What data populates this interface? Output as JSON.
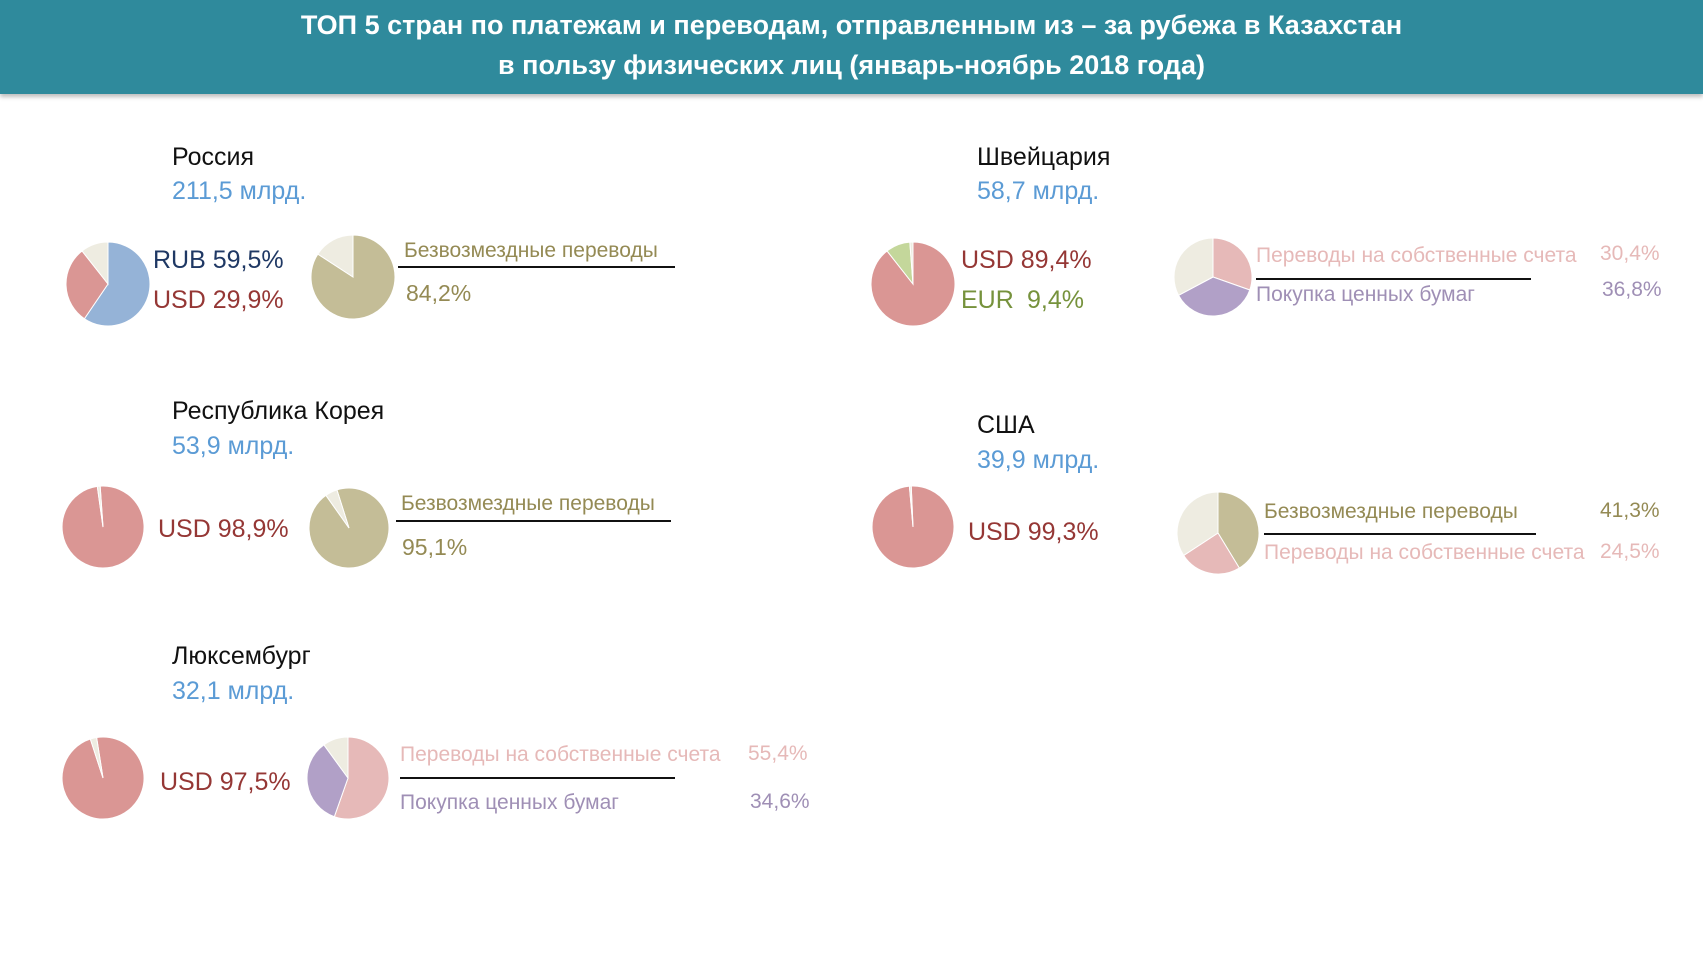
{
  "header": {
    "line1": "ТОП 5 стран по платежам и переводам, отправленным из – за рубежа в Казахстан",
    "line2": "в пользу физических лиц (январь-ноябрь 2018 года)"
  },
  "colors": {
    "header_bg": "#2f8a9c",
    "amount": "#5b9bd5",
    "rub": "#95b3d7",
    "usd": "#da9694",
    "eur": "#c4d79b",
    "other": "#eeece1",
    "gratuitous": "#c4bd97",
    "own_accounts": "#e6b9b8",
    "securities": "#b1a0c7"
  },
  "countries": [
    {
      "name": "Россия",
      "amount": "211,5 млрд.",
      "currency_labels": [
        "RUB 59,5%",
        "USD 29,9%"
      ],
      "purpose_labels": [
        "Безвозмездные переводы",
        "84,2%"
      ]
    },
    {
      "name": "Швейцария",
      "amount": "58,7 млрд.",
      "currency_labels": [
        "USD 89,4%",
        "EUR",
        "9,4%"
      ],
      "purpose_labels": [
        "Переводы на собственные счета",
        "30,4%",
        "Покупка ценных бумаг",
        "36,8%"
      ]
    },
    {
      "name": "Республика Корея",
      "amount": "53,9 млрд.",
      "currency_labels": [
        "USD 98,9%"
      ],
      "purpose_labels": [
        "Безвозмездные переводы",
        "95,1%"
      ]
    },
    {
      "name": "США",
      "amount": "39,9 млрд.",
      "currency_labels": [
        "USD 99,3%"
      ],
      "purpose_labels": [
        "Безвозмездные переводы",
        "41,3%",
        "Переводы на собственные счета",
        "24,5%"
      ]
    },
    {
      "name": "Люксембург",
      "amount": "32,1 млрд.",
      "currency_labels": [
        "USD 97,5%"
      ],
      "purpose_labels": [
        "Переводы на собственные счета",
        "55,4%",
        "Покупка ценных бумаг",
        "34,6%"
      ]
    }
  ],
  "chart_data": [
    {
      "type": "pie",
      "country": "Россия",
      "breakdown": "currency",
      "slices": [
        {
          "label": "RUB",
          "value": 59.5,
          "color": "#95b3d7"
        },
        {
          "label": "USD",
          "value": 29.9,
          "color": "#da9694"
        },
        {
          "label": "",
          "value": 10.6,
          "color": "#eeece1"
        }
      ]
    },
    {
      "type": "pie",
      "country": "Россия",
      "breakdown": "purpose",
      "slices": [
        {
          "label": "Безвозмездные переводы",
          "value": 84.2,
          "color": "#c4bd97"
        },
        {
          "label": "",
          "value": 15.8,
          "color": "#eeece1"
        }
      ]
    },
    {
      "type": "pie",
      "country": "Швейцария",
      "breakdown": "currency",
      "slices": [
        {
          "label": "USD",
          "value": 89.4,
          "color": "#da9694"
        },
        {
          "label": "EUR",
          "value": 9.4,
          "color": "#c4d79b"
        },
        {
          "label": "",
          "value": 1.2,
          "color": "#eeece1"
        }
      ]
    },
    {
      "type": "pie",
      "country": "Швейцария",
      "breakdown": "purpose",
      "slices": [
        {
          "label": "Переводы на собственные счета",
          "value": 30.4,
          "color": "#e6b9b8"
        },
        {
          "label": "Покупка ценных бумаг",
          "value": 36.8,
          "color": "#b1a0c7"
        },
        {
          "label": "",
          "value": 32.8,
          "color": "#eeece1"
        }
      ]
    },
    {
      "type": "pie",
      "country": "Республика Корея",
      "breakdown": "currency",
      "slices": [
        {
          "label": "USD",
          "value": 98.9,
          "color": "#da9694"
        },
        {
          "label": "",
          "value": 1.1,
          "color": "#eeece1"
        }
      ]
    },
    {
      "type": "pie",
      "country": "Республика Корея",
      "breakdown": "purpose",
      "slices": [
        {
          "label": "Безвозмездные переводы",
          "value": 95.1,
          "color": "#c4bd97"
        },
        {
          "label": "",
          "value": 4.9,
          "color": "#eeece1"
        }
      ]
    },
    {
      "type": "pie",
      "country": "США",
      "breakdown": "currency",
      "slices": [
        {
          "label": "USD",
          "value": 99.3,
          "color": "#da9694"
        },
        {
          "label": "",
          "value": 0.7,
          "color": "#eeece1"
        }
      ]
    },
    {
      "type": "pie",
      "country": "США",
      "breakdown": "purpose",
      "slices": [
        {
          "label": "Безвозмездные переводы",
          "value": 41.3,
          "color": "#c4bd97"
        },
        {
          "label": "Переводы на собственные счета",
          "value": 24.5,
          "color": "#e6b9b8"
        },
        {
          "label": "",
          "value": 34.2,
          "color": "#eeece1"
        }
      ]
    },
    {
      "type": "pie",
      "country": "Люксембург",
      "breakdown": "currency",
      "slices": [
        {
          "label": "USD",
          "value": 97.5,
          "color": "#da9694"
        },
        {
          "label": "",
          "value": 2.5,
          "color": "#eeece1"
        }
      ]
    },
    {
      "type": "pie",
      "country": "Люксембург",
      "breakdown": "purpose",
      "slices": [
        {
          "label": "Переводы на собственные счета",
          "value": 55.4,
          "color": "#e6b9b8"
        },
        {
          "label": "Покупка ценных бумаг",
          "value": 34.6,
          "color": "#b1a0c7"
        },
        {
          "label": "",
          "value": 10.0,
          "color": "#eeece1"
        }
      ]
    }
  ]
}
